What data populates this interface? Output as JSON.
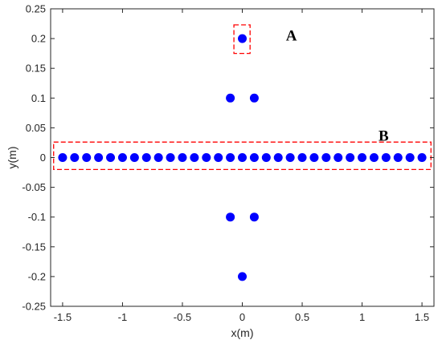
{
  "chart_data": {
    "type": "scatter",
    "xlabel": "x(m)",
    "ylabel": "y(m)",
    "xlim": [
      -1.6,
      1.6
    ],
    "ylim": [
      -0.25,
      0.25
    ],
    "x_ticks": [
      "-1.5",
      "-1",
      "-0.5",
      "0",
      "0.5",
      "1",
      "1.5"
    ],
    "x_tick_values": [
      -1.5,
      -1,
      -0.5,
      0,
      0.5,
      1,
      1.5
    ],
    "y_ticks": [
      "0.25",
      "0.2",
      "0.15",
      "0.1",
      "0.05",
      "0",
      "-0.05",
      "-0.1",
      "-0.15",
      "-0.2",
      "-0.25"
    ],
    "y_tick_values": [
      0.25,
      0.2,
      0.15,
      0.1,
      0.05,
      0,
      -0.05,
      -0.1,
      -0.15,
      -0.2,
      -0.25
    ],
    "grid": false,
    "marker_color": "#0000ff",
    "series": [
      {
        "points": [
          [
            0,
            0.2
          ],
          [
            -0.1,
            0.1
          ],
          [
            0.1,
            0.1
          ],
          [
            -0.1,
            -0.1
          ],
          [
            0.1,
            -0.1
          ],
          [
            0,
            -0.2
          ],
          [
            -1.5,
            0
          ],
          [
            -1.4,
            0
          ],
          [
            -1.3,
            0
          ],
          [
            -1.2,
            0
          ],
          [
            -1.1,
            0
          ],
          [
            -1.0,
            0
          ],
          [
            -0.9,
            0
          ],
          [
            -0.8,
            0
          ],
          [
            -0.7,
            0
          ],
          [
            -0.6,
            0
          ],
          [
            -0.5,
            0
          ],
          [
            -0.4,
            0
          ],
          [
            -0.3,
            0
          ],
          [
            -0.2,
            0
          ],
          [
            -0.1,
            0
          ],
          [
            0,
            0
          ],
          [
            0.1,
            0
          ],
          [
            0.2,
            0
          ],
          [
            0.3,
            0
          ],
          [
            0.4,
            0
          ],
          [
            0.5,
            0
          ],
          [
            0.6,
            0
          ],
          [
            0.7,
            0
          ],
          [
            0.8,
            0
          ],
          [
            0.9,
            0
          ],
          [
            1.0,
            0
          ],
          [
            1.1,
            0
          ],
          [
            1.2,
            0
          ],
          [
            1.3,
            0
          ],
          [
            1.4,
            0
          ],
          [
            1.5,
            0
          ]
        ]
      }
    ],
    "annotations": [
      {
        "label": "A",
        "box_x": [
          -0.07,
          0.065
        ],
        "box_y": [
          0.175,
          0.223
        ],
        "text_x": 0.41,
        "text_y": 0.197,
        "color": "#ff0000"
      },
      {
        "label": "B",
        "box_x": [
          -1.575,
          1.575
        ],
        "box_y": [
          -0.02,
          0.026
        ],
        "text_x": 1.18,
        "text_y": 0.028,
        "color": "#ff0000"
      }
    ]
  }
}
